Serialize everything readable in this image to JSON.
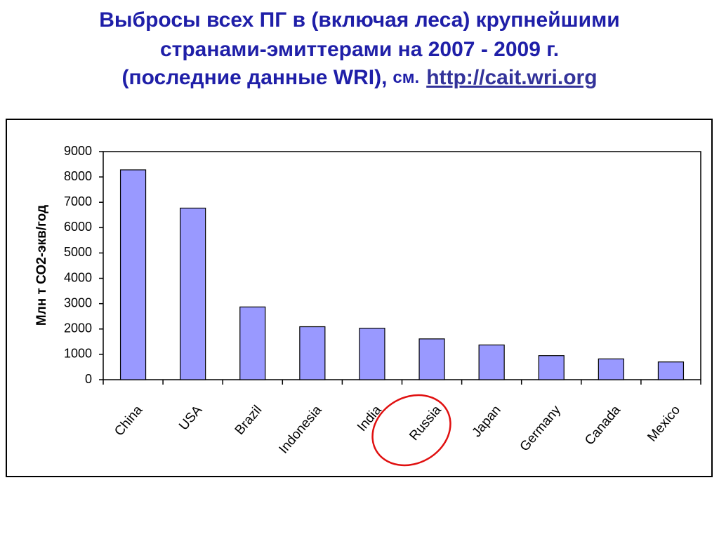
{
  "chart_data": {
    "type": "bar",
    "title_lines": [
      "Выбросы всех ПГ в (включая леса) крупнейшими",
      "странами-эмиттерами на 2007 - 2009 г.",
      "(последние данные WRI),"
    ],
    "title_note": "см.",
    "title_link": "http://cait.wri.org",
    "y_label": "Млн т СО2-экв/год",
    "categories": [
      "China",
      "USA",
      "Brazil",
      "Indonesia",
      "India",
      "Russia",
      "Japan",
      "Germany",
      "Canada",
      "Mexico"
    ],
    "values": [
      8280,
      6770,
      2870,
      2090,
      2030,
      1610,
      1370,
      950,
      820,
      700
    ],
    "color": "#9999ff",
    "ylim": [
      0,
      9000
    ],
    "yticks": [
      0,
      1000,
      2000,
      3000,
      4000,
      5000,
      6000,
      7000,
      8000,
      9000
    ]
  }
}
